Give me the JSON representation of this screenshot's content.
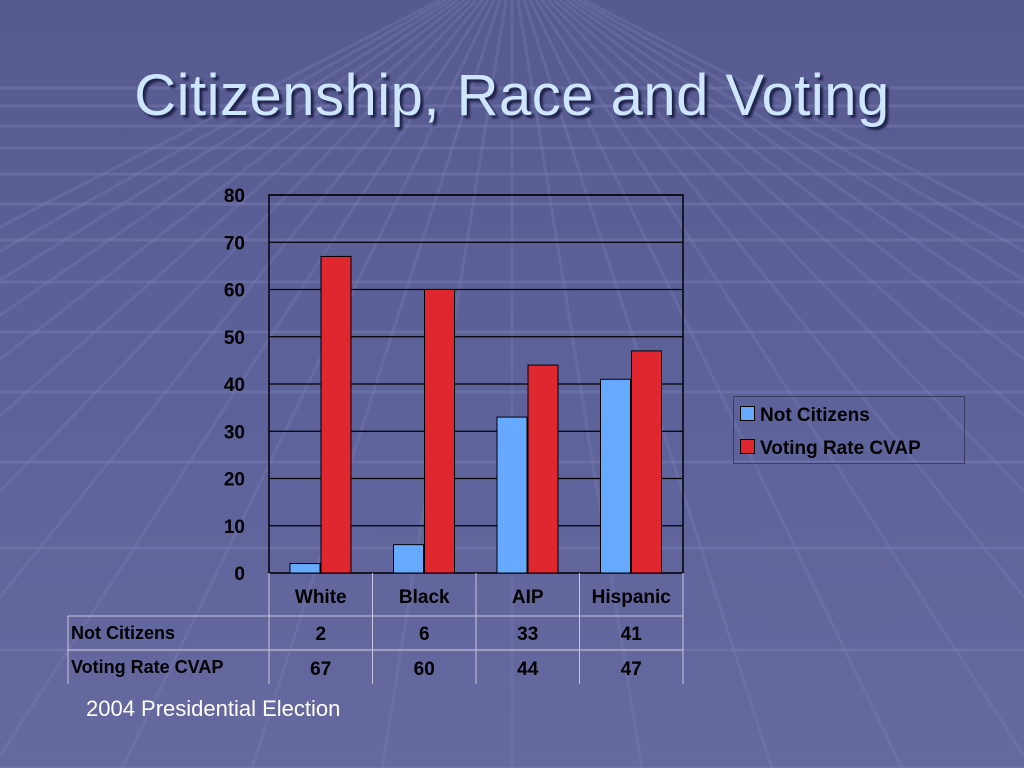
{
  "slide": {
    "title": "Citizenship, Race and Voting",
    "caption": "2004 Presidential Election"
  },
  "colors": {
    "background": "#5d619a",
    "title": "#cfe6ff",
    "series_not_citizens": "#66aaff",
    "series_voting_rate": "#e0262e"
  },
  "chart_data": {
    "type": "bar",
    "categories": [
      "White",
      "Black",
      "AIP",
      "Hispanic"
    ],
    "series": [
      {
        "name": "Not Citizens",
        "values": [
          2,
          6,
          33,
          41
        ],
        "color": "#66aaff"
      },
      {
        "name": "Voting Rate CVAP",
        "values": [
          67,
          60,
          44,
          47
        ],
        "color": "#e0262e"
      }
    ],
    "ylim": [
      0,
      80
    ],
    "yticks": [
      "0",
      "10",
      "20",
      "30",
      "40",
      "50",
      "60",
      "70",
      "80"
    ],
    "grid": true,
    "legend": "right",
    "data_table": true
  }
}
